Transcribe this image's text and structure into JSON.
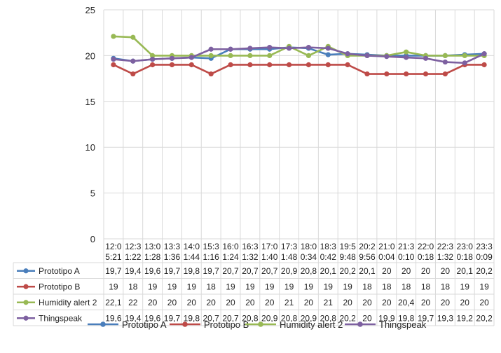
{
  "chart_data": {
    "type": "line",
    "ylim": [
      0,
      25
    ],
    "yticks": [
      0,
      5,
      10,
      15,
      20,
      25
    ],
    "grid": true,
    "legend_position": "bottom",
    "categories": [
      [
        "12:0",
        "5:21"
      ],
      [
        "12:3",
        "1:22"
      ],
      [
        "13:0",
        "1:28"
      ],
      [
        "13:3",
        "1:36"
      ],
      [
        "14:0",
        "1:44"
      ],
      [
        "15:3",
        "1:16"
      ],
      [
        "16:0",
        "1:24"
      ],
      [
        "16:3",
        "1:32"
      ],
      [
        "17:0",
        "1:40"
      ],
      [
        "17:3",
        "1:48"
      ],
      [
        "18:0",
        "0:34"
      ],
      [
        "18:3",
        "0:42"
      ],
      [
        "19:5",
        "9:48"
      ],
      [
        "20:2",
        "9:56"
      ],
      [
        "21:0",
        "0:04"
      ],
      [
        "21:3",
        "0:10"
      ],
      [
        "22:0",
        "0:18"
      ],
      [
        "22:3",
        "1:32"
      ],
      [
        "23:0",
        "0:18"
      ],
      [
        "23:3",
        "0:09"
      ]
    ],
    "series": [
      {
        "name": "Prototipo A",
        "color": "#4a7ebb",
        "values": [
          19.7,
          19.4,
          19.6,
          19.7,
          19.8,
          19.7,
          20.7,
          20.7,
          20.7,
          20.9,
          20.8,
          20.1,
          20.2,
          20.1,
          20,
          20,
          20,
          20,
          20.1,
          20.2
        ],
        "labels": [
          "19,7",
          "19,4",
          "19,6",
          "19,7",
          "19,8",
          "19,7",
          "20,7",
          "20,7",
          "20,7",
          "20,9",
          "20,8",
          "20,1",
          "20,2",
          "20,1",
          "20",
          "20",
          "20",
          "20",
          "20,1",
          "20,2"
        ]
      },
      {
        "name": "Prototipo B",
        "color": "#be4b48",
        "values": [
          19,
          18,
          19,
          19,
          19,
          18,
          19,
          19,
          19,
          19,
          19,
          19,
          19,
          18,
          18,
          18,
          18,
          18,
          19,
          19
        ],
        "labels": [
          "19",
          "18",
          "19",
          "19",
          "19",
          "18",
          "19",
          "19",
          "19",
          "19",
          "19",
          "19",
          "19",
          "18",
          "18",
          "18",
          "18",
          "18",
          "19",
          "19"
        ]
      },
      {
        "name": "Humidity alert 2",
        "color": "#98b954",
        "values": [
          22.1,
          22,
          20,
          20,
          20,
          20,
          20,
          20,
          20,
          21,
          20,
          21,
          20,
          20,
          20,
          20.4,
          20,
          20,
          20,
          20
        ],
        "labels": [
          "22,1",
          "22",
          "20",
          "20",
          "20",
          "20",
          "20",
          "20",
          "20",
          "21",
          "20",
          "21",
          "20",
          "20",
          "20",
          "20,4",
          "20",
          "20",
          "20",
          "20"
        ]
      },
      {
        "name": "Thingspeak",
        "color": "#7d60a0",
        "values": [
          19.6,
          19.4,
          19.6,
          19.7,
          19.8,
          20.7,
          20.7,
          20.8,
          20.9,
          20.8,
          20.9,
          20.8,
          20.2,
          20,
          19.9,
          19.8,
          19.7,
          19.3,
          19.2,
          20.2
        ],
        "labels": [
          "19,6",
          "19,4",
          "19,6",
          "19,7",
          "19,8",
          "20,7",
          "20,7",
          "20,8",
          "20,9",
          "20,8",
          "20,9",
          "20,8",
          "20,2",
          "20",
          "19,9",
          "19,8",
          "19,7",
          "19,3",
          "19,2",
          "20,2"
        ]
      }
    ]
  }
}
